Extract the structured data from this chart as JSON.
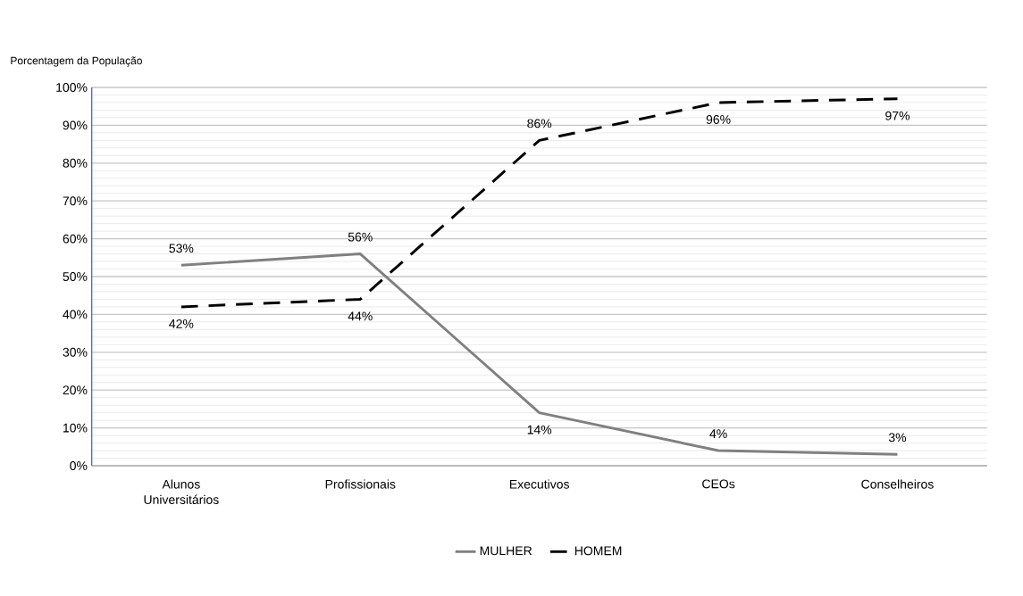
{
  "chart_data": {
    "type": "line",
    "ylabel": "Porcentagem da População",
    "categories": [
      "Alunos Universitários",
      "Profissionais",
      "Executivos",
      "CEOs",
      "Conselheiros"
    ],
    "series": [
      {
        "name": "MULHER",
        "color": "#808080",
        "line_style": "solid",
        "values": [
          53,
          56,
          14,
          4,
          3
        ],
        "value_labels": [
          "53%",
          "56%",
          "14%",
          "4%",
          "3%"
        ]
      },
      {
        "name": "HOMEM",
        "color": "#000000",
        "line_style": "dashed",
        "values": [
          42,
          44,
          86,
          96,
          97
        ],
        "value_labels": [
          "42%",
          "44%",
          "86%",
          "96%",
          "97%"
        ]
      }
    ],
    "ylim": [
      0,
      100
    ],
    "yticks": [
      {
        "value": 0,
        "label": "0%"
      },
      {
        "value": 10,
        "label": "10%"
      },
      {
        "value": 20,
        "label": "20%"
      },
      {
        "value": 30,
        "label": "30%"
      },
      {
        "value": 40,
        "label": "40%"
      },
      {
        "value": 50,
        "label": "50%"
      },
      {
        "value": 60,
        "label": "60%"
      },
      {
        "value": 70,
        "label": "70%"
      },
      {
        "value": 80,
        "label": "80%"
      },
      {
        "value": 90,
        "label": "90%"
      },
      {
        "value": 100,
        "label": "100%"
      }
    ],
    "grid": "y",
    "legend": "bottom",
    "marker": "none"
  }
}
